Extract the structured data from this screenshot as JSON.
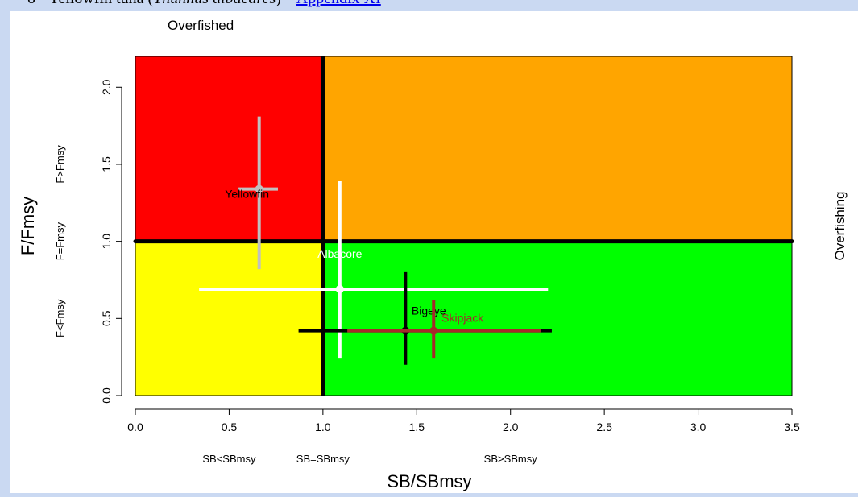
{
  "document_line": {
    "bullet": "o",
    "text_plain": "Yellowfin tuna (",
    "text_italic": "Thunnus albacares",
    "text_after": ") – ",
    "link_text": "Appendix XI"
  },
  "chart_data": {
    "type": "scatter",
    "title": "",
    "xlabel": "SB/SBmsy",
    "ylabel": "F/Fmsy",
    "xlim": [
      0,
      3.5
    ],
    "ylim": [
      0,
      2.2
    ],
    "x_ticks": [
      "0.0",
      "0.5",
      "1.0",
      "1.5",
      "2.0",
      "2.5",
      "3.0",
      "3.5"
    ],
    "y_ticks": [
      "0.0",
      "0.5",
      "1.0",
      "1.5",
      "2.0"
    ],
    "grid": false,
    "reference_lines": {
      "x": 1.0,
      "y": 1.0
    },
    "quadrants": [
      {
        "name": "overfished-and-overfishing",
        "color": "#ff0000"
      },
      {
        "name": "overfishing-only",
        "color": "#ffa500"
      },
      {
        "name": "overfished-only",
        "color": "#ffff00"
      },
      {
        "name": "healthy",
        "color": "#00ff00"
      }
    ],
    "top_label": "Overfished",
    "right_label": "Overfishing",
    "x_zone_labels": [
      {
        "text": "SB<SBmsy",
        "x": 0.5
      },
      {
        "text": "SB=SBmsy",
        "x": 1.0
      },
      {
        "text": "SB>SBmsy",
        "x": 2.0
      }
    ],
    "y_zone_labels": [
      {
        "text": "F<Fmsy",
        "y": 0.5
      },
      {
        "text": "F=Fmsy",
        "y": 1.0
      },
      {
        "text": "F>Fmsy",
        "y": 1.5
      }
    ],
    "stocks": [
      {
        "name": "Yellowfin",
        "x": 0.66,
        "y": 1.34,
        "x_range": [
          0.55,
          0.76
        ],
        "y_range": [
          0.82,
          1.81
        ],
        "color": "#c0c0c0",
        "label_color": "#000000"
      },
      {
        "name": "Albacore",
        "x": 1.09,
        "y": 0.69,
        "x_range": [
          0.34,
          2.2
        ],
        "y_range": [
          0.24,
          1.39
        ],
        "color": "#ffffff",
        "label_color": "#ffffff"
      },
      {
        "name": "Bigeye",
        "x": 1.44,
        "y": 0.42,
        "x_range": [
          0.87,
          2.22
        ],
        "y_range": [
          0.2,
          0.8
        ],
        "color": "#000000",
        "label_color": "#000000"
      },
      {
        "name": "Skipjack",
        "x": 1.59,
        "y": 0.42,
        "x_range": [
          1.13,
          2.16
        ],
        "y_range": [
          0.24,
          0.62
        ],
        "color": "#a52a2a",
        "label_color": "#a52a2a"
      }
    ]
  }
}
